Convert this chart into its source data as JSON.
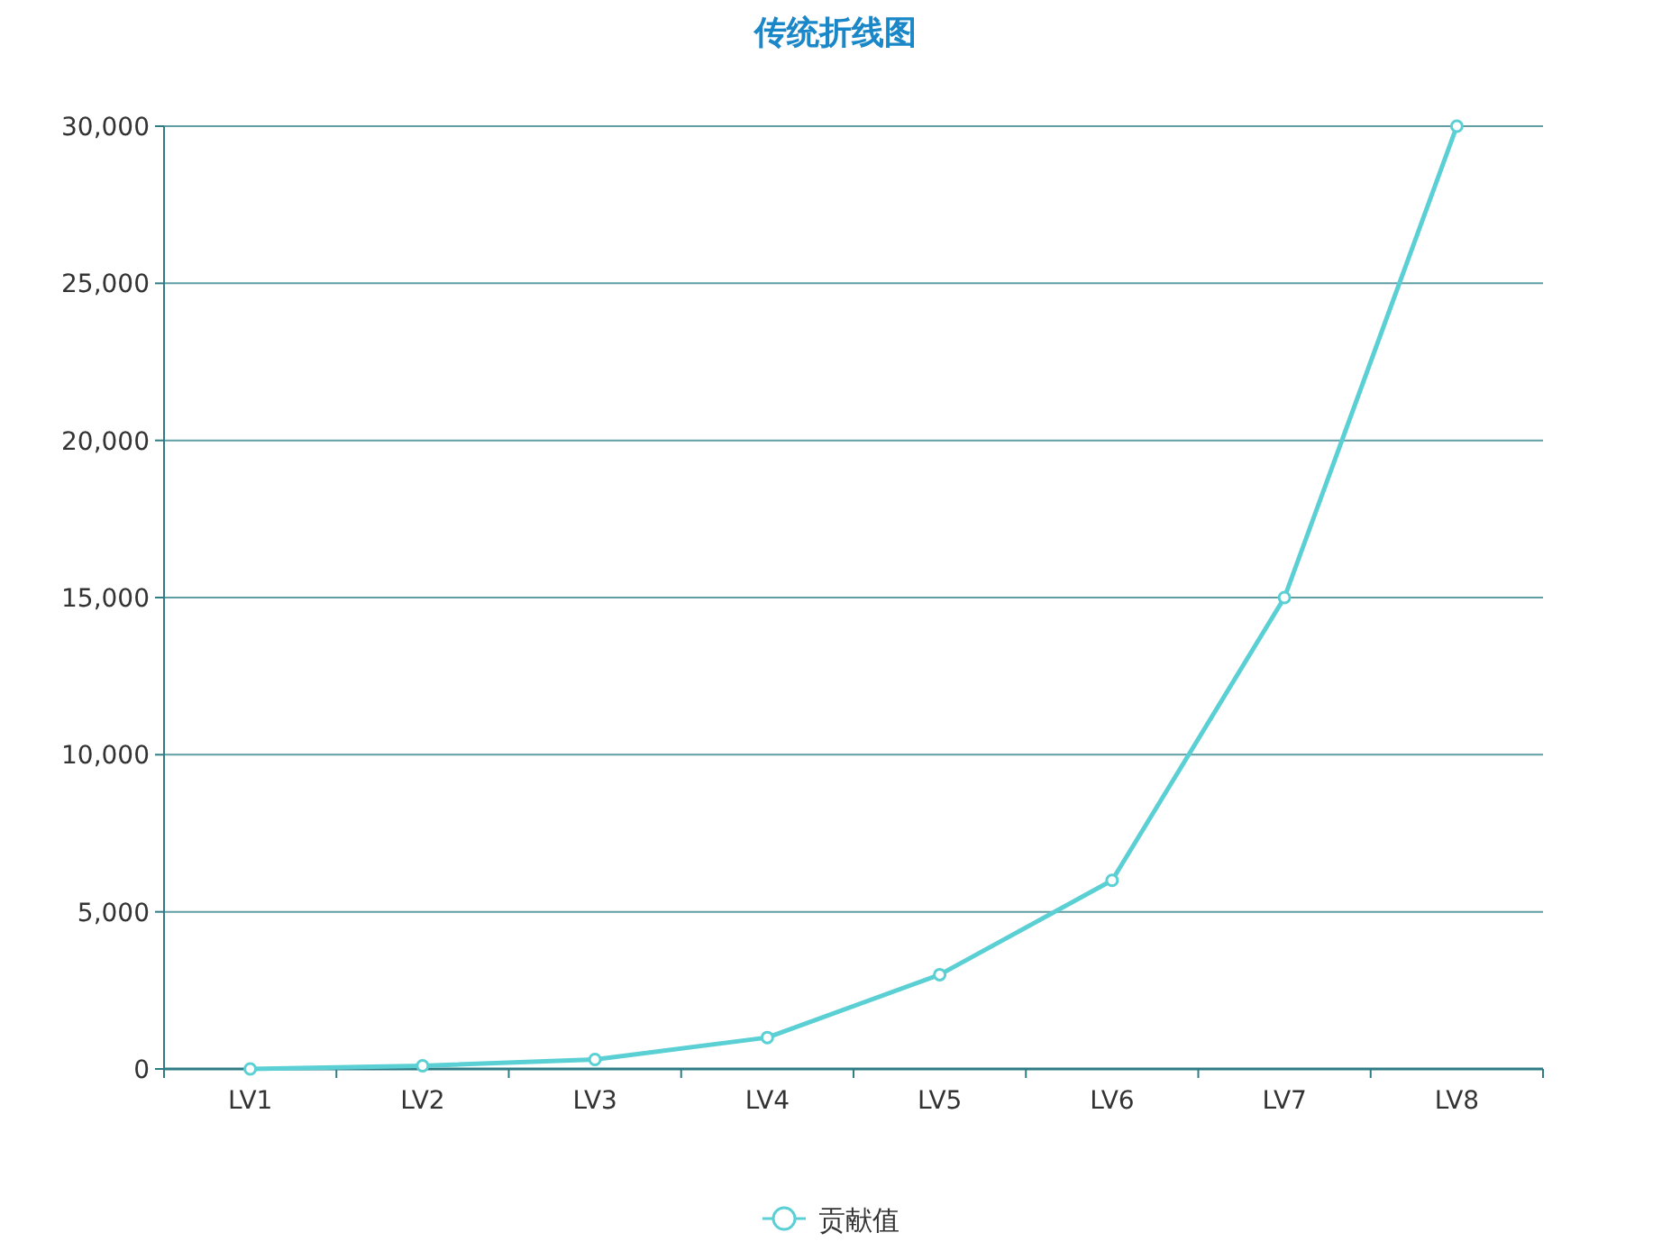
{
  "chart_data": {
    "type": "line",
    "title": "传统折线图",
    "categories": [
      "LV1",
      "LV2",
      "LV3",
      "LV4",
      "LV5",
      "LV6",
      "LV7",
      "LV8"
    ],
    "series": [
      {
        "name": "贡献值",
        "color": "#5ad0d4",
        "values": [
          0,
          100,
          300,
          1000,
          3000,
          6000,
          15000,
          30000
        ]
      }
    ],
    "ylim": [
      0,
      30000
    ],
    "yticks": [
      {
        "value": 0,
        "label": "0"
      },
      {
        "value": 5000,
        "label": "5,000"
      },
      {
        "value": 10000,
        "label": "10,000"
      },
      {
        "value": 15000,
        "label": "15,000"
      },
      {
        "value": 20000,
        "label": "20,000"
      },
      {
        "value": 25000,
        "label": "25,000"
      },
      {
        "value": 30000,
        "label": "30,000"
      }
    ],
    "grid": "y",
    "legend": "bottom",
    "marker": "circle",
    "line_style": "solid"
  }
}
